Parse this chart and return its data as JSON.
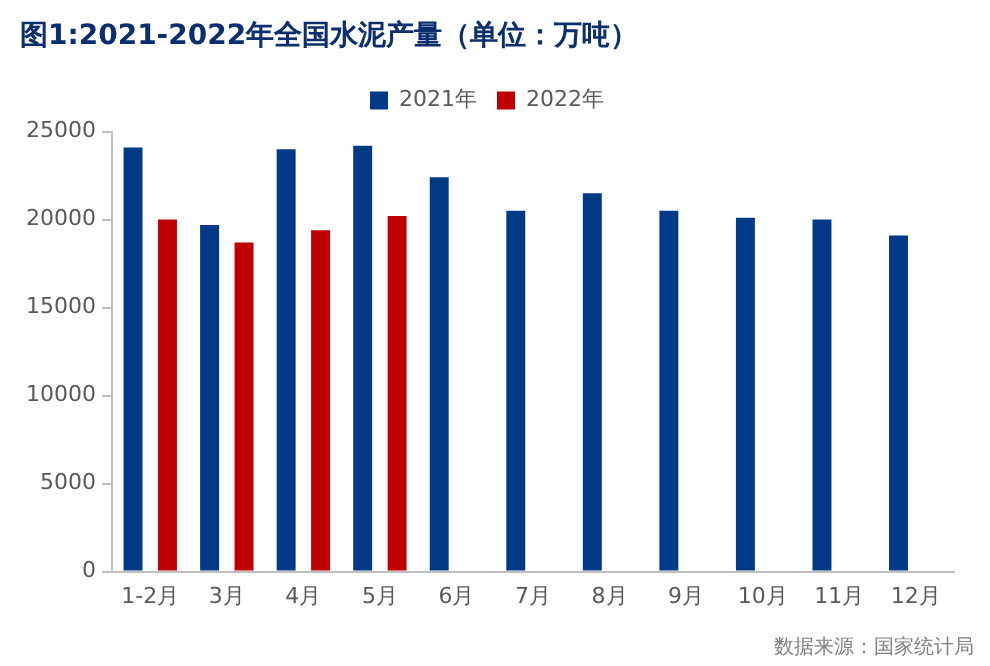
{
  "chart_data": {
    "type": "bar",
    "title": "图1:2021-2022年全国水泥产量（单位：万吨）",
    "categories": [
      "1-2月",
      "3月",
      "4月",
      "5月",
      "6月",
      "7月",
      "8月",
      "9月",
      "10月",
      "11月",
      "12月"
    ],
    "series": [
      {
        "name": "2021年",
        "color": "#003a87",
        "values": [
          24100,
          19700,
          24000,
          24200,
          22400,
          20500,
          21500,
          20500,
          20100,
          20000,
          19100
        ]
      },
      {
        "name": "2022年",
        "color": "#c00000",
        "values": [
          20000,
          18700,
          19400,
          20200,
          null,
          null,
          null,
          null,
          null,
          null,
          null
        ]
      }
    ],
    "ylim": [
      0,
      25000
    ],
    "yticks": [
      0,
      5000,
      10000,
      15000,
      20000,
      25000
    ],
    "grid": false,
    "legend": "top",
    "annotations": [
      "数据来源：国家统计局"
    ]
  }
}
